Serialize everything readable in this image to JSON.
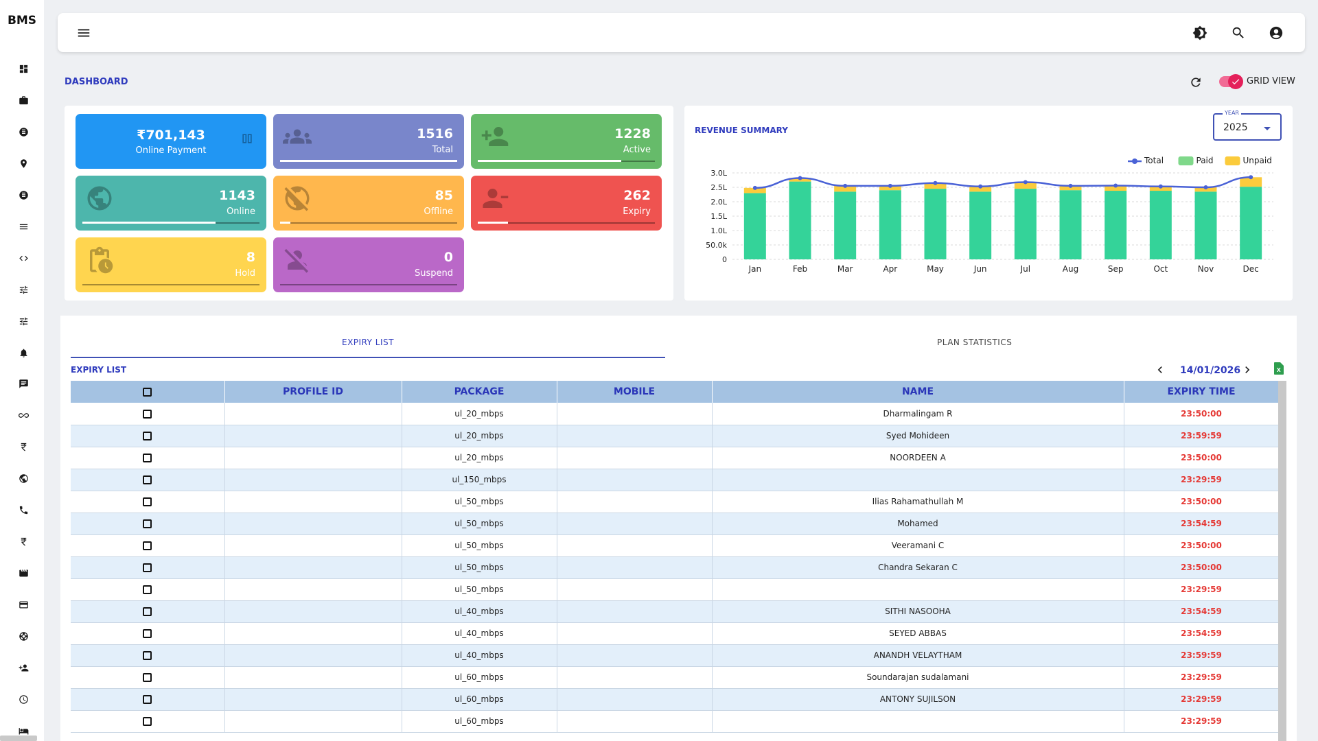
{
  "sidebar": {
    "brand": "BMS",
    "icons": [
      "dashboard-icon",
      "briefcase-icon",
      "network-icon",
      "location-pin-icon",
      "network-alt-icon",
      "list-icon",
      "code-arrows-icon",
      "tune-icon",
      "tune-alt-icon",
      "bell-icon",
      "chat-icon",
      "infinity-icon",
      "rupee-icon",
      "globe-icon",
      "phone-icon",
      "rupee-alt-icon",
      "movie-icon",
      "credit-card-icon",
      "support-icon",
      "add-user-icon",
      "clock-icon",
      "bed-icon"
    ]
  },
  "header": {
    "menu_icon": "menu-icon",
    "right_icons": [
      "brightness-icon",
      "search-icon",
      "account-icon"
    ]
  },
  "breadcrumb": "DASHBOARD",
  "view_toggle": {
    "label": "GRID VIEW",
    "on": true
  },
  "stats": [
    {
      "value": "₹701,143",
      "label": "Online Payment",
      "color": "#2196f3",
      "icon": "payment-icon"
    },
    {
      "value": "1516",
      "label": "Total",
      "color": "#7986cb",
      "icon": "group-icon",
      "progress": 1.0
    },
    {
      "value": "1228",
      "label": "Active",
      "color": "#66bb6a",
      "icon": "person-add-icon",
      "progress": 0.81
    },
    {
      "value": "1143",
      "label": "Online",
      "color": "#4db6ac",
      "icon": "globe-icon",
      "progress": 0.75
    },
    {
      "value": "85",
      "label": "Offline",
      "color": "#ffb74d",
      "icon": "no-signal-icon",
      "progress": 0.06
    },
    {
      "value": "262",
      "label": "Expiry",
      "color": "#ef5350",
      "icon": "person-remove-icon",
      "progress": 0.17
    },
    {
      "value": "8",
      "label": "Hold",
      "color": "#ffd54f",
      "icon": "bag-clock-icon",
      "progress": 0.0
    },
    {
      "value": "0",
      "label": "Suspend",
      "color": "#ba68c8",
      "icon": "person-off-icon",
      "progress": 0.0
    }
  ],
  "revenue": {
    "title": "REVENUE SUMMARY",
    "year_label": "YEAR",
    "year": "2025"
  },
  "chart_data": {
    "type": "bar",
    "categories": [
      "Jan",
      "Feb",
      "Mar",
      "Apr",
      "May",
      "Jun",
      "Jul",
      "Aug",
      "Sep",
      "Oct",
      "Nov",
      "Dec"
    ],
    "series": [
      {
        "name": "Paid",
        "color": "#34d399",
        "values": [
          230000,
          270000,
          235000,
          240000,
          245000,
          235000,
          245000,
          240000,
          238000,
          238000,
          235000,
          252000
        ]
      },
      {
        "name": "Unpaid",
        "color": "#fbcb3c",
        "values": [
          18000,
          12000,
          20000,
          15000,
          20000,
          18000,
          23000,
          15000,
          18000,
          15000,
          15000,
          33000
        ]
      },
      {
        "name": "Total",
        "color": "#4a62d6",
        "values": [
          248000,
          282000,
          255000,
          255000,
          265000,
          253000,
          268000,
          255000,
          256000,
          253000,
          250000,
          285000
        ]
      }
    ],
    "yticks": [
      "0",
      "50.0k",
      "1.0L",
      "1.5L",
      "2.0L",
      "2.5L",
      "3.0L"
    ],
    "ylim": [
      0,
      300000
    ],
    "legend": "top-right",
    "grid": true
  },
  "tabs": [
    {
      "label": "EXPIRY LIST",
      "active": true
    },
    {
      "label": "PLAN STATISTICS",
      "active": false
    }
  ],
  "expiry": {
    "title": "EXPIRY LIST",
    "date": "14/01/2026",
    "columns": [
      "",
      "PROFILE ID",
      "PACKAGE",
      "MOBILE",
      "NAME",
      "EXPIRY TIME"
    ],
    "rows": [
      {
        "profile": "",
        "package": "ul_20_mbps",
        "mobile": "",
        "name": "Dharmalingam R",
        "time": "23:50:00"
      },
      {
        "profile": "",
        "package": "ul_20_mbps",
        "mobile": "",
        "name": "Syed Mohideen",
        "time": "23:59:59"
      },
      {
        "profile": "",
        "package": "ul_20_mbps",
        "mobile": "",
        "name": "NOORDEEN A",
        "time": "23:50:00"
      },
      {
        "profile": "",
        "package": "ul_150_mbps",
        "mobile": "",
        "name": "",
        "time": "23:29:59"
      },
      {
        "profile": "",
        "package": "ul_50_mbps",
        "mobile": "",
        "name": "Ilias Rahamathullah M",
        "time": "23:50:00"
      },
      {
        "profile": "",
        "package": "ul_50_mbps",
        "mobile": "",
        "name": "Mohamed",
        "time": "23:54:59"
      },
      {
        "profile": "",
        "package": "ul_50_mbps",
        "mobile": "",
        "name": "Veeramani C",
        "time": "23:50:00"
      },
      {
        "profile": "",
        "package": "ul_50_mbps",
        "mobile": "",
        "name": "Chandra Sekaran C",
        "time": "23:50:00"
      },
      {
        "profile": "",
        "package": "ul_50_mbps",
        "mobile": "",
        "name": "",
        "time": "23:29:59"
      },
      {
        "profile": "",
        "package": "ul_40_mbps",
        "mobile": "",
        "name": "SITHI NASOOHA",
        "time": "23:54:59"
      },
      {
        "profile": "",
        "package": "ul_40_mbps",
        "mobile": "",
        "name": "SEYED ABBAS",
        "time": "23:54:59"
      },
      {
        "profile": "",
        "package": "ul_40_mbps",
        "mobile": "",
        "name": "ANANDH VELAYTHAM",
        "time": "23:59:59"
      },
      {
        "profile": "",
        "package": "ul_60_mbps",
        "mobile": "",
        "name": "Soundarajan sudalamani",
        "time": "23:29:59"
      },
      {
        "profile": "",
        "package": "ul_60_mbps",
        "mobile": "",
        "name": "ANTONY SUJILSON",
        "time": "23:29:59"
      },
      {
        "profile": "",
        "package": "ul_60_mbps",
        "mobile": "",
        "name": "",
        "time": "23:29:59"
      }
    ]
  }
}
